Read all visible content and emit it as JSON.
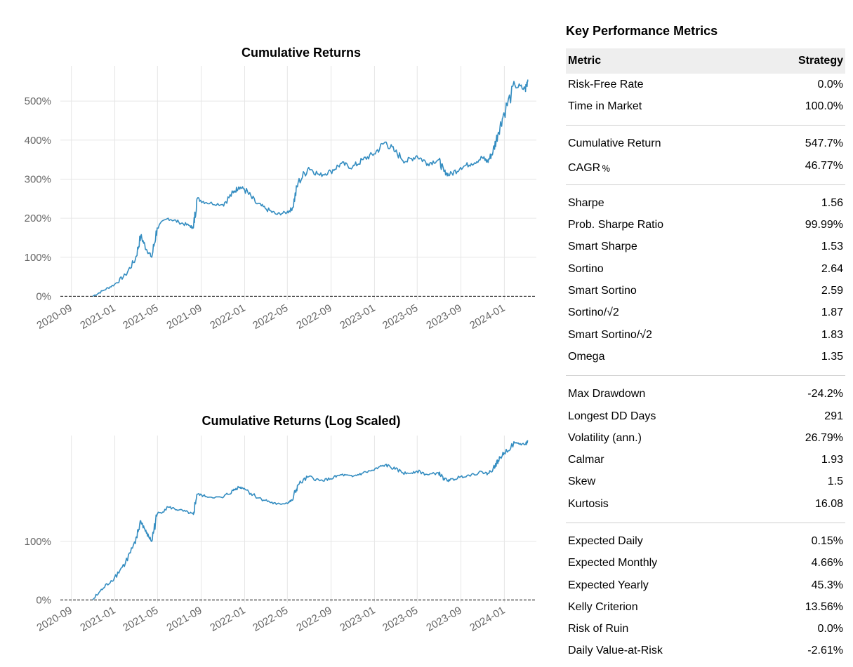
{
  "metrics": {
    "title": "Key Performance Metrics",
    "header": [
      "Metric",
      "Strategy"
    ],
    "groups": [
      [
        [
          "Risk-Free Rate",
          "0.0%"
        ],
        [
          "Time in Market",
          "100.0%"
        ]
      ],
      [
        [
          "Cumulative Return",
          "547.7%"
        ],
        [
          "CAGR﹪",
          "46.77%"
        ]
      ],
      [
        [
          "Sharpe",
          "1.56"
        ],
        [
          "Prob. Sharpe Ratio",
          "99.99%"
        ],
        [
          "Smart Sharpe",
          "1.53"
        ],
        [
          "Sortino",
          "2.64"
        ],
        [
          "Smart Sortino",
          "2.59"
        ],
        [
          "Sortino/√2",
          "1.87"
        ],
        [
          "Smart Sortino/√2",
          "1.83"
        ],
        [
          "Omega",
          "1.35"
        ]
      ],
      [
        [
          "Max Drawdown",
          "-24.2%"
        ],
        [
          "Longest DD Days",
          "291"
        ],
        [
          "Volatility (ann.)",
          "26.79%"
        ],
        [
          "Calmar",
          "1.93"
        ],
        [
          "Skew",
          "1.5"
        ],
        [
          "Kurtosis",
          "16.08"
        ]
      ],
      [
        [
          "Expected Daily",
          "0.15%"
        ],
        [
          "Expected Monthly",
          "4.66%"
        ],
        [
          "Expected Yearly",
          "45.3%"
        ],
        [
          "Kelly Criterion",
          "13.56%"
        ],
        [
          "Risk of Ruin",
          "0.0%"
        ],
        [
          "Daily Value-at-Risk",
          "-2.61%"
        ]
      ]
    ]
  },
  "chart_data": [
    {
      "type": "line",
      "title": "Cumulative Returns",
      "xlabel": "",
      "ylabel": "",
      "x_ticks": [
        "2020-09",
        "2021-01",
        "2021-05",
        "2021-09",
        "2022-01",
        "2022-05",
        "2022-09",
        "2023-01",
        "2023-05",
        "2023-09",
        "2024-01"
      ],
      "y_ticks": [
        "0%",
        "100%",
        "200%",
        "300%",
        "400%",
        "500%"
      ],
      "ylim": [
        -10,
        590
      ],
      "xlim": [
        "2020-08-01",
        "2024-03-31"
      ],
      "reference_line": {
        "y": 0,
        "style": "dashed",
        "color": "#000000"
      },
      "color": "#348dc1",
      "grid": true,
      "series": [
        {
          "x": [
            "2020-10-31",
            "2020-11-30",
            "2020-12-31",
            "2021-01-31",
            "2021-02-28",
            "2021-03-15",
            "2021-03-31",
            "2021-04-15",
            "2021-04-30",
            "2021-05-31",
            "2021-06-30",
            "2021-07-31",
            "2021-08-10",
            "2021-08-20",
            "2021-09-15",
            "2021-10-31",
            "2021-11-30",
            "2021-12-15",
            "2021-12-31",
            "2022-01-31",
            "2022-02-28",
            "2022-03-31",
            "2022-04-30",
            "2022-05-15",
            "2022-05-31",
            "2022-06-30",
            "2022-07-31",
            "2022-08-31",
            "2022-09-30",
            "2022-10-31",
            "2022-11-30",
            "2022-12-31",
            "2023-01-31",
            "2023-02-28",
            "2023-03-31",
            "2023-04-30",
            "2023-05-31",
            "2023-06-30",
            "2023-07-15",
            "2023-07-31",
            "2023-08-31",
            "2023-09-30",
            "2023-10-31",
            "2023-11-15",
            "2023-11-30",
            "2023-12-15",
            "2023-12-31",
            "2024-01-31",
            "2024-02-29",
            "2024-03-07"
          ],
          "y": [
            0,
            15,
            30,
            55,
            95,
            155,
            120,
            100,
            175,
            200,
            190,
            180,
            175,
            250,
            240,
            235,
            265,
            280,
            275,
            240,
            225,
            210,
            215,
            225,
            290,
            330,
            310,
            320,
            340,
            330,
            350,
            365,
            395,
            370,
            345,
            360,
            340,
            350,
            320,
            310,
            330,
            340,
            355,
            345,
            370,
            420,
            470,
            540,
            530,
            555
          ]
        }
      ]
    },
    {
      "type": "line",
      "title": "Cumulative Returns (Log Scaled)",
      "xlabel": "",
      "ylabel": "",
      "x_ticks": [
        "2020-09",
        "2021-01",
        "2021-05",
        "2021-09",
        "2022-01",
        "2022-05",
        "2022-09",
        "2023-01",
        "2023-05",
        "2023-09",
        "2024-01"
      ],
      "y_ticks": [
        "0%",
        "100%"
      ],
      "y_scale": "log(1+r)",
      "ylim": [
        -3,
        600
      ],
      "xlim": [
        "2020-08-01",
        "2024-03-31"
      ],
      "reference_line": {
        "y": 0,
        "style": "dashed",
        "color": "#000000"
      },
      "color": "#348dc1",
      "grid": true,
      "series": [
        {
          "x": [
            "2020-10-31",
            "2020-11-30",
            "2020-12-31",
            "2021-01-31",
            "2021-02-28",
            "2021-03-15",
            "2021-03-31",
            "2021-04-15",
            "2021-04-30",
            "2021-05-31",
            "2021-06-30",
            "2021-07-31",
            "2021-08-10",
            "2021-08-20",
            "2021-09-15",
            "2021-10-31",
            "2021-11-30",
            "2021-12-15",
            "2021-12-31",
            "2022-01-31",
            "2022-02-28",
            "2022-03-31",
            "2022-04-30",
            "2022-05-15",
            "2022-05-31",
            "2022-06-30",
            "2022-07-31",
            "2022-08-31",
            "2022-09-30",
            "2022-10-31",
            "2022-11-30",
            "2022-12-31",
            "2023-01-31",
            "2023-02-28",
            "2023-03-31",
            "2023-04-30",
            "2023-05-31",
            "2023-06-30",
            "2023-07-15",
            "2023-07-31",
            "2023-08-31",
            "2023-09-30",
            "2023-10-31",
            "2023-11-15",
            "2023-11-30",
            "2023-12-15",
            "2023-12-31",
            "2024-01-31",
            "2024-02-29",
            "2024-03-07"
          ],
          "y": [
            0,
            15,
            30,
            55,
            95,
            155,
            120,
            100,
            175,
            200,
            190,
            180,
            175,
            250,
            240,
            235,
            265,
            280,
            275,
            240,
            225,
            210,
            215,
            225,
            290,
            330,
            310,
            320,
            340,
            330,
            350,
            365,
            395,
            370,
            345,
            360,
            340,
            350,
            320,
            310,
            330,
            340,
            355,
            345,
            370,
            420,
            470,
            540,
            530,
            555
          ]
        }
      ]
    }
  ]
}
